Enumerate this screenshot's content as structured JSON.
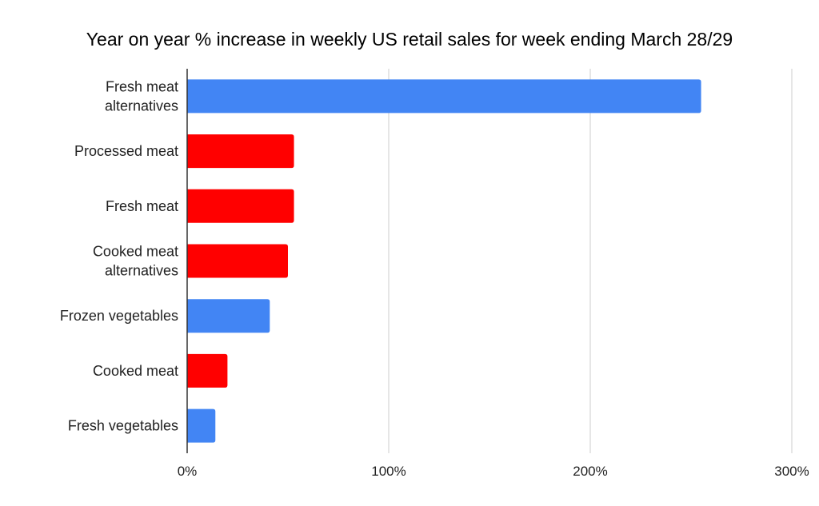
{
  "chart_data": {
    "type": "bar",
    "orientation": "horizontal",
    "title": "Year on year % increase in weekly US retail sales for week ending March 28/29",
    "xlabel": "",
    "ylabel": "",
    "categories": [
      [
        "Fresh meat",
        "alternatives"
      ],
      [
        "Processed meat"
      ],
      [
        "Fresh meat"
      ],
      [
        "Cooked meat",
        "alternatives"
      ],
      [
        "Frozen vegetables"
      ],
      [
        "Cooked meat"
      ],
      [
        "Fresh vegetables"
      ]
    ],
    "values": [
      255,
      53,
      53,
      50,
      41,
      20,
      14
    ],
    "value_unit": "%",
    "bar_colors": [
      "#4285f4",
      "#ff0000",
      "#ff0000",
      "#ff0000",
      "#4285f4",
      "#ff0000",
      "#4285f4"
    ],
    "xlim": [
      0,
      300
    ],
    "x_ticks": [
      0,
      100,
      200,
      300
    ],
    "x_tick_labels": [
      "0%",
      "100%",
      "200%",
      "300%"
    ],
    "grid": true,
    "legend": "none"
  }
}
